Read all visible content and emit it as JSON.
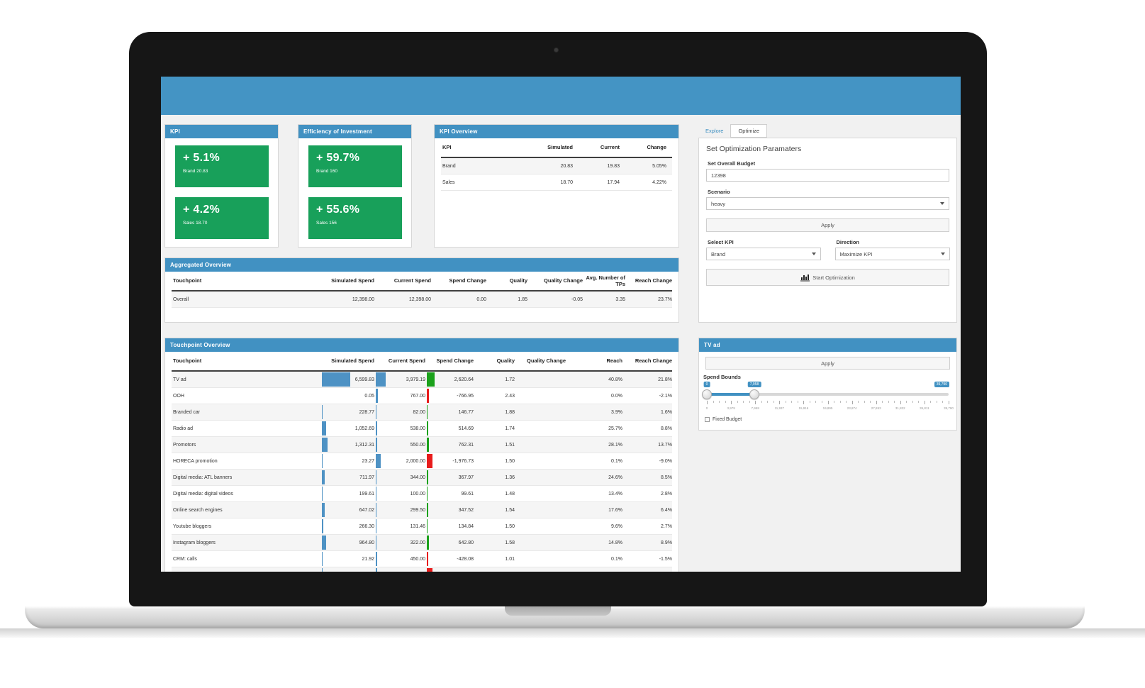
{
  "colors": {
    "topbar_blue": "#4494c4",
    "panel_header_blue": "#4191c2",
    "card_green": "#18a05a",
    "bar_blue": "#4e92c4",
    "bar_green": "#1ba11b",
    "bar_red": "#e81c1c"
  },
  "kpi_panel": {
    "title": "KPI",
    "cards": [
      {
        "value": "+ 5.1%",
        "label": "Brand 20.83"
      },
      {
        "value": "+ 4.2%",
        "label": "Sales 18.70"
      }
    ]
  },
  "efficiency_panel": {
    "title": "Efficiency of Investment",
    "cards": [
      {
        "value": "+ 59.7%",
        "label": "Brand 160"
      },
      {
        "value": "+ 55.6%",
        "label": "Sales 156"
      }
    ]
  },
  "kpi_overview": {
    "title": "KPI Overview",
    "columns": [
      "KPI",
      "Simulated",
      "Current",
      "Change"
    ],
    "rows": [
      [
        "Brand",
        "20.83",
        "19.83",
        "5.05%"
      ],
      [
        "Sales",
        "18.70",
        "17.94",
        "4.22%"
      ]
    ]
  },
  "aggregated_overview": {
    "title": "Aggregated Overview",
    "columns": [
      "Touchpoint",
      "Simulated Spend",
      "Current Spend",
      "Spend Change",
      "Quality",
      "Quality Change",
      "Avg. Number of TPs",
      "Reach Change"
    ],
    "rows": [
      [
        "Overall",
        "12,398.00",
        "12,398.00",
        "0.00",
        "1.85",
        "-0.05",
        "3.35",
        "23.7%"
      ]
    ]
  },
  "touchpoint_overview": {
    "title": "Touchpoint Overview",
    "columns": [
      "Touchpoint",
      "Simulated Spend",
      "Current Spend",
      "Spend Change",
      "Quality",
      "Quality Change",
      "Reach",
      "Reach Change"
    ],
    "rows": [
      {
        "name": "TV ad",
        "simulated": 6599.83,
        "simulated_fmt": "6,599.83",
        "current": 3979.19,
        "current_fmt": "3,979.19",
        "change": 2620.64,
        "change_fmt": "2,620.64",
        "quality": "1.72",
        "quality_change": "",
        "reach": "40.8%",
        "reach_change": "21.8%"
      },
      {
        "name": "OOH",
        "simulated": 0.05,
        "simulated_fmt": "0.05",
        "current": 767.0,
        "current_fmt": "767.00",
        "change": -766.95,
        "change_fmt": "-766.95",
        "quality": "2.43",
        "quality_change": "",
        "reach": "0.0%",
        "reach_change": "-2.1%"
      },
      {
        "name": "Branded car",
        "simulated": 228.77,
        "simulated_fmt": "228.77",
        "current": 82.0,
        "current_fmt": "82.00",
        "change": 146.77,
        "change_fmt": "146.77",
        "quality": "1.88",
        "quality_change": "",
        "reach": "3.9%",
        "reach_change": "1.6%"
      },
      {
        "name": "Radio ad",
        "simulated": 1052.69,
        "simulated_fmt": "1,052.69",
        "current": 538.0,
        "current_fmt": "538.00",
        "change": 514.69,
        "change_fmt": "514.69",
        "quality": "1.74",
        "quality_change": "",
        "reach": "25.7%",
        "reach_change": "8.8%"
      },
      {
        "name": "Promotors",
        "simulated": 1312.31,
        "simulated_fmt": "1,312.31",
        "current": 550.0,
        "current_fmt": "550.00",
        "change": 762.31,
        "change_fmt": "762.31",
        "quality": "1.51",
        "quality_change": "",
        "reach": "28.1%",
        "reach_change": "13.7%"
      },
      {
        "name": "HORECA promotion",
        "simulated": 23.27,
        "simulated_fmt": "23.27",
        "current": 2000.0,
        "current_fmt": "2,000.00",
        "change": -1976.73,
        "change_fmt": "-1,976.73",
        "quality": "1.50",
        "quality_change": "",
        "reach": "0.1%",
        "reach_change": "-9.0%"
      },
      {
        "name": "Digital media: ATL banners",
        "simulated": 711.97,
        "simulated_fmt": "711.97",
        "current": 344.0,
        "current_fmt": "344.00",
        "change": 367.97,
        "change_fmt": "367.97",
        "quality": "1.36",
        "quality_change": "",
        "reach": "24.6%",
        "reach_change": "8.5%"
      },
      {
        "name": "Digital media: digital videos",
        "simulated": 199.61,
        "simulated_fmt": "199.61",
        "current": 100.0,
        "current_fmt": "100.00",
        "change": 99.61,
        "change_fmt": "99.61",
        "quality": "1.48",
        "quality_change": "",
        "reach": "13.4%",
        "reach_change": "2.8%"
      },
      {
        "name": "Online search engines",
        "simulated": 647.02,
        "simulated_fmt": "647.02",
        "current": 299.5,
        "current_fmt": "299.50",
        "change": 347.52,
        "change_fmt": "347.52",
        "quality": "1.54",
        "quality_change": "",
        "reach": "17.6%",
        "reach_change": "6.4%"
      },
      {
        "name": "Youtube bloggers",
        "simulated": 266.3,
        "simulated_fmt": "266.30",
        "current": 131.46,
        "current_fmt": "131.46",
        "change": 134.84,
        "change_fmt": "134.84",
        "quality": "1.50",
        "quality_change": "",
        "reach": "9.6%",
        "reach_change": "2.7%"
      },
      {
        "name": "Instagram bloggers",
        "simulated": 964.8,
        "simulated_fmt": "964.80",
        "current": 322.0,
        "current_fmt": "322.00",
        "change": 642.8,
        "change_fmt": "642.80",
        "quality": "1.58",
        "quality_change": "",
        "reach": "14.8%",
        "reach_change": "8.9%"
      },
      {
        "name": "CRM: calls",
        "simulated": 21.92,
        "simulated_fmt": "21.92",
        "current": 450.0,
        "current_fmt": "450.00",
        "change": -428.08,
        "change_fmt": "-428.08",
        "quality": "1.01",
        "quality_change": "",
        "reach": "0.1%",
        "reach_change": "-1.5%"
      }
    ],
    "partial_row_visible": true
  },
  "optimize_panel": {
    "tabs": [
      {
        "label": "Explore",
        "active": false
      },
      {
        "label": "Optimize",
        "active": true
      }
    ],
    "heading": "Set Optimization Paramaters",
    "budget_label": "Set Overall Budget",
    "budget_value": "12398",
    "scenario_label": "Scenario",
    "scenario_value": "heavy",
    "apply_label": "Apply",
    "select_kpi_label": "Select KPI",
    "select_kpi_value": "Brand",
    "direction_label": "Direction",
    "direction_value": "Maximize KPI",
    "start_label": "Start Optimization"
  },
  "tv_ad_panel": {
    "title": "TV ad",
    "apply_label": "Apply",
    "bounds_label": "Spend Bounds",
    "handle_low_value": "0",
    "handle_mid_value": "7,958",
    "max_value": "39,790",
    "ticks": [
      "0",
      "3,979",
      "7,958",
      "11,937",
      "15,916",
      "19,895",
      "23,874",
      "27,853",
      "31,832",
      "35,811",
      "39,790"
    ],
    "fixed_budget_label": "Fixed Budget",
    "fixed_budget_checked": false
  },
  "icons": {
    "start_optimization": "bar-chart-icon",
    "dropdowns": "caret-down-icon",
    "fixed_budget": "checkbox-icon"
  }
}
